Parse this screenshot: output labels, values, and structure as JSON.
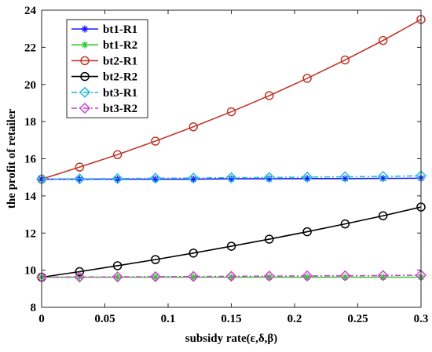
{
  "chart_data": {
    "type": "line",
    "xlabel": "subsidy rate(ε,δ,β)",
    "ylabel": "the profit of retailer",
    "xlim": [
      0,
      0.3
    ],
    "ylim": [
      8,
      24
    ],
    "xticks": [
      0,
      0.05,
      0.1,
      0.15,
      0.2,
      0.25,
      0.3
    ],
    "xtick_labels": [
      "0",
      "0.05",
      "0.1",
      "0.15",
      "0.2",
      "0.25",
      "0.3"
    ],
    "yticks": [
      8,
      10,
      12,
      14,
      16,
      18,
      20,
      22,
      24
    ],
    "ytick_labels": [
      "8",
      "10",
      "12",
      "14",
      "16",
      "18",
      "20",
      "22",
      "24"
    ],
    "legend_position": "top-left",
    "x": [
      0,
      0.03,
      0.06,
      0.09,
      0.12,
      0.15,
      0.18,
      0.21,
      0.24,
      0.27,
      0.3
    ],
    "series": [
      {
        "name": "bt1-R1",
        "color": "#1a1aff",
        "line": "solid",
        "marker": "asterisk",
        "values": [
          14.9,
          14.9,
          14.9,
          14.9,
          14.9,
          14.92,
          14.92,
          14.93,
          14.93,
          14.94,
          14.95
        ]
      },
      {
        "name": "bt1-R2",
        "color": "#33cc33",
        "line": "solid",
        "marker": "asterisk",
        "values": [
          9.62,
          9.62,
          9.62,
          9.62,
          9.62,
          9.62,
          9.62,
          9.62,
          9.62,
          9.62,
          9.62
        ]
      },
      {
        "name": "bt2-R1",
        "color": "#c0392b",
        "line": "solid",
        "marker": "circle",
        "values": [
          14.9,
          15.55,
          16.22,
          16.95,
          17.72,
          18.53,
          19.4,
          20.33,
          21.32,
          22.37,
          23.5
        ]
      },
      {
        "name": "bt2-R2",
        "color": "#000000",
        "line": "solid",
        "marker": "circle",
        "values": [
          9.62,
          9.92,
          10.24,
          10.57,
          10.92,
          11.29,
          11.67,
          12.07,
          12.49,
          12.93,
          13.4
        ]
      },
      {
        "name": "bt3-R1",
        "color": "#22b8e6",
        "line": "dashdot",
        "marker": "diamond",
        "values": [
          14.9,
          14.92,
          14.93,
          14.95,
          14.96,
          14.98,
          14.99,
          15.01,
          15.03,
          15.05,
          15.08
        ]
      },
      {
        "name": "bt3-R2",
        "color": "#cc44cc",
        "line": "dashdot",
        "marker": "diamond",
        "values": [
          9.62,
          9.63,
          9.64,
          9.65,
          9.66,
          9.67,
          9.68,
          9.69,
          9.7,
          9.71,
          9.73
        ]
      }
    ]
  }
}
